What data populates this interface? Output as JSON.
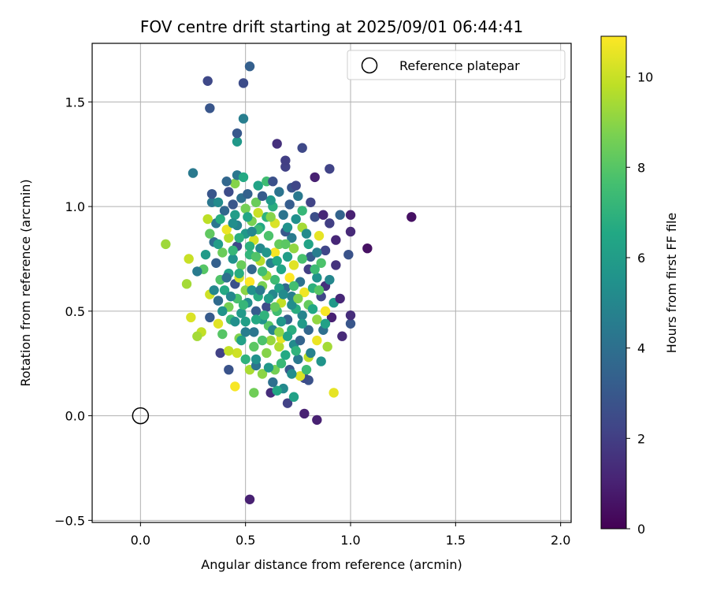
{
  "chart_data": {
    "type": "scatter",
    "title": "FOV centre drift starting at 2025/09/01 06:44:41",
    "xlabel": "Angular distance from reference (arcmin)",
    "ylabel": "Rotation from reference (arcmin)",
    "xlim": [
      -0.23,
      2.05
    ],
    "ylim": [
      -0.51,
      1.78
    ],
    "xticks": [
      0.0,
      0.5,
      1.0,
      1.5,
      2.0
    ],
    "xtick_labels": [
      "0.0",
      "0.5",
      "1.0",
      "1.5",
      "2.0"
    ],
    "yticks": [
      -0.5,
      0.0,
      0.5,
      1.0,
      1.5
    ],
    "ytick_labels": [
      "−0.5",
      "0.0",
      "0.5",
      "1.0",
      "1.5"
    ],
    "grid": true,
    "legend_placement": "top-right",
    "reference": {
      "name": "Reference platepar",
      "x": 0.0,
      "y": 0.0
    },
    "colorbar": {
      "label": "Hours from first FF file",
      "colormap": "viridis",
      "range": [
        0,
        10.9
      ],
      "ticks": [
        0,
        2,
        4,
        6,
        8,
        10
      ],
      "tick_labels": [
        "0",
        "2",
        "4",
        "6",
        "8",
        "10"
      ]
    },
    "points": [
      [
        0.52,
        -0.4,
        1.0
      ],
      [
        0.84,
        -0.02,
        1.0
      ],
      [
        0.78,
        0.01,
        1.0
      ],
      [
        0.7,
        0.06,
        2.1
      ],
      [
        0.73,
        0.09,
        6.2
      ],
      [
        0.62,
        0.11,
        1.4
      ],
      [
        0.92,
        0.11,
        10.5
      ],
      [
        0.54,
        0.11,
        8.5
      ],
      [
        0.68,
        0.13,
        5.1
      ],
      [
        0.8,
        0.17,
        2.7
      ],
      [
        0.65,
        0.12,
        6.5
      ],
      [
        0.45,
        0.14,
        10.8
      ],
      [
        0.63,
        0.16,
        4.0
      ],
      [
        0.78,
        0.18,
        2.5
      ],
      [
        0.76,
        0.19,
        10.3
      ],
      [
        0.58,
        0.2,
        9.0
      ],
      [
        0.64,
        0.22,
        8.6
      ],
      [
        0.71,
        0.22,
        3.0
      ],
      [
        0.52,
        0.22,
        9.5
      ],
      [
        0.42,
        0.22,
        2.8
      ],
      [
        0.55,
        0.24,
        4.2
      ],
      [
        0.67,
        0.25,
        7.3
      ],
      [
        0.75,
        0.27,
        4.4
      ],
      [
        0.86,
        0.26,
        5.6
      ],
      [
        0.5,
        0.27,
        7.0
      ],
      [
        0.8,
        0.28,
        9.8
      ],
      [
        0.46,
        0.3,
        10.1
      ],
      [
        0.38,
        0.3,
        2.1
      ],
      [
        0.6,
        0.3,
        8.9
      ],
      [
        0.89,
        0.33,
        9.4
      ],
      [
        0.66,
        0.33,
        9.6
      ],
      [
        0.42,
        0.31,
        9.9
      ],
      [
        0.54,
        0.33,
        8.1
      ],
      [
        0.73,
        0.34,
        5.2
      ],
      [
        0.84,
        0.36,
        10.6
      ],
      [
        0.62,
        0.36,
        9.2
      ],
      [
        0.47,
        0.37,
        8.8
      ],
      [
        0.39,
        0.39,
        8.0
      ],
      [
        0.29,
        0.4,
        9.9
      ],
      [
        0.27,
        0.38,
        9.4
      ],
      [
        0.67,
        0.37,
        10.5
      ],
      [
        0.96,
        0.38,
        1.3
      ],
      [
        0.54,
        0.4,
        4.3
      ],
      [
        0.72,
        0.41,
        6.8
      ],
      [
        0.8,
        0.41,
        3.6
      ],
      [
        0.61,
        0.43,
        8.0
      ],
      [
        0.5,
        0.45,
        6.1
      ],
      [
        0.37,
        0.44,
        10.4
      ],
      [
        0.43,
        0.46,
        7.4
      ],
      [
        1.0,
        0.44,
        2.9
      ],
      [
        0.58,
        0.46,
        5.6
      ],
      [
        0.7,
        0.46,
        3.3
      ],
      [
        0.84,
        0.46,
        9.1
      ],
      [
        0.91,
        0.47,
        1.0
      ],
      [
        0.77,
        0.48,
        4.9
      ],
      [
        0.24,
        0.47,
        10.3
      ],
      [
        0.48,
        0.49,
        5.9
      ],
      [
        0.65,
        0.5,
        7.5
      ],
      [
        0.55,
        0.5,
        3.2
      ],
      [
        0.88,
        0.5,
        10.8
      ],
      [
        0.33,
        0.47,
        3.1
      ],
      [
        1.0,
        0.48,
        1.4
      ],
      [
        0.74,
        0.51,
        6.8
      ],
      [
        0.42,
        0.52,
        8.6
      ],
      [
        0.6,
        0.52,
        2.5
      ],
      [
        0.8,
        0.53,
        8.3
      ],
      [
        0.51,
        0.54,
        5.3
      ],
      [
        0.67,
        0.54,
        9.9
      ],
      [
        0.37,
        0.55,
        3.8
      ],
      [
        0.92,
        0.54,
        5.8
      ],
      [
        0.95,
        0.56,
        1.2
      ],
      [
        0.46,
        0.56,
        7.7
      ],
      [
        0.72,
        0.57,
        4.6
      ],
      [
        0.56,
        0.57,
        6.7
      ],
      [
        0.86,
        0.57,
        2.3
      ],
      [
        0.63,
        0.58,
        5.0
      ],
      [
        0.33,
        0.58,
        10.1
      ],
      [
        0.78,
        0.59,
        10.7
      ],
      [
        0.4,
        0.6,
        6.6
      ],
      [
        0.5,
        0.6,
        9.0
      ],
      [
        0.69,
        0.61,
        3.7
      ],
      [
        0.82,
        0.61,
        6.9
      ],
      [
        0.58,
        0.62,
        8.7
      ],
      [
        0.45,
        0.63,
        2.7
      ],
      [
        0.88,
        0.62,
        1.5
      ],
      [
        0.22,
        0.63,
        9.4
      ],
      [
        0.52,
        0.64,
        10.9
      ],
      [
        0.64,
        0.65,
        7.4
      ],
      [
        0.76,
        0.64,
        4.1
      ],
      [
        0.38,
        0.65,
        7.9
      ],
      [
        0.47,
        0.66,
        10.2
      ],
      [
        0.71,
        0.66,
        10.9
      ],
      [
        0.84,
        0.66,
        5.5
      ],
      [
        0.6,
        0.67,
        9.3
      ],
      [
        0.42,
        0.68,
        6.2
      ],
      [
        0.3,
        0.7,
        8.0
      ],
      [
        0.53,
        0.7,
        3.6
      ],
      [
        0.67,
        0.7,
        6.4
      ],
      [
        0.8,
        0.7,
        2.0
      ],
      [
        0.27,
        0.69,
        4.5
      ],
      [
        0.93,
        0.72,
        1.6
      ],
      [
        0.73,
        0.72,
        10.4
      ],
      [
        0.48,
        0.72,
        8.4
      ],
      [
        0.62,
        0.73,
        4.7
      ],
      [
        0.36,
        0.73,
        3.3
      ],
      [
        0.86,
        0.73,
        7.8
      ],
      [
        0.57,
        0.74,
        9.7
      ],
      [
        0.44,
        0.75,
        5.5
      ],
      [
        0.23,
        0.75,
        10.0
      ],
      [
        0.7,
        0.76,
        6.0
      ],
      [
        0.81,
        0.76,
        3.1
      ],
      [
        0.99,
        0.77,
        2.8
      ],
      [
        0.52,
        0.77,
        7.1
      ],
      [
        0.64,
        0.78,
        10.8
      ],
      [
        0.39,
        0.78,
        8.4
      ],
      [
        0.88,
        0.79,
        2.3
      ],
      [
        0.73,
        0.8,
        9.1
      ],
      [
        0.57,
        0.8,
        5.1
      ],
      [
        0.46,
        0.81,
        2.4
      ],
      [
        1.08,
        0.8,
        0.5
      ],
      [
        0.12,
        0.82,
        9.3
      ],
      [
        0.66,
        0.82,
        8.3
      ],
      [
        0.8,
        0.82,
        6.3
      ],
      [
        0.35,
        0.83,
        3.9
      ],
      [
        0.93,
        0.84,
        1.2
      ],
      [
        0.54,
        0.84,
        10.2
      ],
      [
        0.42,
        0.85,
        9.7
      ],
      [
        0.72,
        0.85,
        4.5
      ],
      [
        0.61,
        0.86,
        7.8
      ],
      [
        0.85,
        0.86,
        10.5
      ],
      [
        0.5,
        0.87,
        5.8
      ],
      [
        0.33,
        0.87,
        8.2
      ],
      [
        1.0,
        0.88,
        1.3
      ],
      [
        0.69,
        0.88,
        3.0
      ],
      [
        0.41,
        0.89,
        10.6
      ],
      [
        0.77,
        0.9,
        9.4
      ],
      [
        0.57,
        0.9,
        6.5
      ],
      [
        0.46,
        0.91,
        4.8
      ],
      [
        0.9,
        0.92,
        2.0
      ],
      [
        0.64,
        0.92,
        10.3
      ],
      [
        0.36,
        0.92,
        4.3
      ],
      [
        0.53,
        0.93,
        8.7
      ],
      [
        0.74,
        0.94,
        5.4
      ],
      [
        0.32,
        0.94,
        9.8
      ],
      [
        0.83,
        0.95,
        2.6
      ],
      [
        0.6,
        0.95,
        7.0
      ],
      [
        0.45,
        0.96,
        6.0
      ],
      [
        1.29,
        0.95,
        0.5
      ],
      [
        0.68,
        0.96,
        4.2
      ],
      [
        1.0,
        0.96,
        1.0
      ],
      [
        0.95,
        0.96,
        3.5
      ],
      [
        0.56,
        0.97,
        10.0
      ],
      [
        0.77,
        0.98,
        7.2
      ],
      [
        0.4,
        0.98,
        3.6
      ],
      [
        0.5,
        0.99,
        8.6
      ],
      [
        0.87,
        0.96,
        1.2
      ],
      [
        0.63,
        1.0,
        6.8
      ],
      [
        0.44,
        1.01,
        2.9
      ],
      [
        0.34,
        1.02,
        4.3
      ],
      [
        0.71,
        1.01,
        3.2
      ],
      [
        0.55,
        1.02,
        8.4
      ],
      [
        0.81,
        1.02,
        2.2
      ],
      [
        0.37,
        1.02,
        5.2
      ],
      [
        0.62,
        1.03,
        5.9
      ],
      [
        0.48,
        1.04,
        4.0
      ],
      [
        0.75,
        1.05,
        4.4
      ],
      [
        0.58,
        1.05,
        3.1
      ],
      [
        0.51,
        1.06,
        3.4
      ],
      [
        0.34,
        1.06,
        2.9
      ],
      [
        0.66,
        1.07,
        4.2
      ],
      [
        0.42,
        1.07,
        2.5
      ],
      [
        0.72,
        1.09,
        2.8
      ],
      [
        0.56,
        1.1,
        6.3
      ],
      [
        0.45,
        1.11,
        8.9
      ],
      [
        0.6,
        1.12,
        7.5
      ],
      [
        0.41,
        1.12,
        3.6
      ],
      [
        0.74,
        1.1,
        2.3
      ],
      [
        0.63,
        1.12,
        2.7
      ],
      [
        0.83,
        1.14,
        1.0
      ],
      [
        0.46,
        1.15,
        4.3
      ],
      [
        0.49,
        1.14,
        6.6
      ],
      [
        0.25,
        1.16,
        4.4
      ],
      [
        0.9,
        1.18,
        2.2
      ],
      [
        0.69,
        1.19,
        2.1
      ],
      [
        0.69,
        1.22,
        2.0
      ],
      [
        0.77,
        1.28,
        2.4
      ],
      [
        0.65,
        1.3,
        1.5
      ],
      [
        0.46,
        1.31,
        5.8
      ],
      [
        0.46,
        1.35,
        3.0
      ],
      [
        0.49,
        1.42,
        4.6
      ],
      [
        0.33,
        1.47,
        2.9
      ],
      [
        0.49,
        1.59,
        2.5
      ],
      [
        0.32,
        1.6,
        2.4
      ],
      [
        0.52,
        1.67,
        3.3
      ],
      [
        0.44,
        0.92,
        5.3
      ],
      [
        0.52,
        0.81,
        6.9
      ],
      [
        0.58,
        0.69,
        7.6
      ],
      [
        0.61,
        0.56,
        6.0
      ],
      [
        0.67,
        0.45,
        5.7
      ],
      [
        0.7,
        0.38,
        6.3
      ],
      [
        0.74,
        0.31,
        7.0
      ],
      [
        0.63,
        0.41,
        4.9
      ],
      [
        0.55,
        0.46,
        6.6
      ],
      [
        0.49,
        0.53,
        7.2
      ],
      [
        0.53,
        0.6,
        5.5
      ],
      [
        0.66,
        0.61,
        6.1
      ],
      [
        0.72,
        0.53,
        5.3
      ],
      [
        0.77,
        0.44,
        5.9
      ],
      [
        0.82,
        0.51,
        6.5
      ],
      [
        0.6,
        0.78,
        5.7
      ],
      [
        0.47,
        0.68,
        6.8
      ],
      [
        0.43,
        0.57,
        5.0
      ],
      [
        0.39,
        0.5,
        5.6
      ],
      [
        0.58,
        0.36,
        7.8
      ],
      [
        0.69,
        0.29,
        6.6
      ],
      [
        0.76,
        0.36,
        3.5
      ],
      [
        0.81,
        0.3,
        4.8
      ],
      [
        0.87,
        0.41,
        4.0
      ],
      [
        0.9,
        0.65,
        5.0
      ],
      [
        0.84,
        0.78,
        4.6
      ],
      [
        0.79,
        0.87,
        5.2
      ],
      [
        0.7,
        0.9,
        5.5
      ],
      [
        0.65,
        0.74,
        6.5
      ],
      [
        0.73,
        0.62,
        7.6
      ],
      [
        0.56,
        0.89,
        7.3
      ],
      [
        0.51,
        0.95,
        6.4
      ],
      [
        0.37,
        0.82,
        6.0
      ],
      [
        0.44,
        0.79,
        7.2
      ],
      [
        0.31,
        0.77,
        5.9
      ],
      [
        0.62,
        0.95,
        8.9
      ],
      [
        0.69,
        0.82,
        8.1
      ],
      [
        0.77,
        0.75,
        7.7
      ],
      [
        0.85,
        0.6,
        8.0
      ],
      [
        0.59,
        0.48,
        7.0
      ],
      [
        0.64,
        0.52,
        8.3
      ],
      [
        0.68,
        0.58,
        5.2
      ],
      [
        0.57,
        0.6,
        4.4
      ],
      [
        0.5,
        0.4,
        4.6
      ],
      [
        0.45,
        0.45,
        5.4
      ],
      [
        0.41,
        0.66,
        4.0
      ],
      [
        0.35,
        0.6,
        5.0
      ],
      [
        0.55,
        0.27,
        5.5
      ],
      [
        0.61,
        0.23,
        5.8
      ],
      [
        0.72,
        0.2,
        5.3
      ],
      [
        0.48,
        0.36,
        6.2
      ],
      [
        0.79,
        0.22,
        7.4
      ],
      [
        0.66,
        0.4,
        9.0
      ],
      [
        0.75,
        0.56,
        8.8
      ],
      [
        0.83,
        0.7,
        7.4
      ],
      [
        0.88,
        0.44,
        6.2
      ],
      [
        0.55,
        0.76,
        7.9
      ],
      [
        0.47,
        0.85,
        6.8
      ],
      [
        0.53,
        0.88,
        5.0
      ],
      [
        0.38,
        0.94,
        6.7
      ]
    ]
  }
}
